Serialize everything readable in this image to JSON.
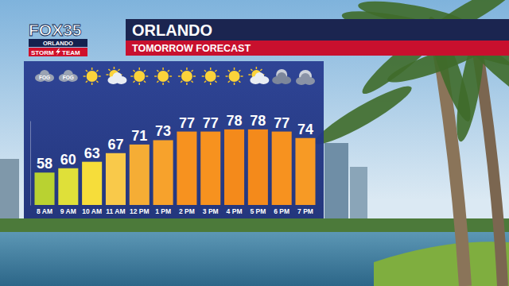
{
  "header": {
    "logo": "FOX35",
    "logo_city": "ORLANDO",
    "logo_tag_left": "STORM",
    "logo_tag_right": "TEAM"
  },
  "chart_data": {
    "type": "bar",
    "title": "ORLANDO",
    "subtitle": "TOMORROW FORECAST",
    "categories": [
      "8 AM",
      "9 AM",
      "10 AM",
      "11 AM",
      "12 PM",
      "1 PM",
      "2 PM",
      "3 PM",
      "4 PM",
      "5 PM",
      "6 PM",
      "7 PM"
    ],
    "values": [
      58,
      60,
      63,
      67,
      71,
      73,
      77,
      77,
      78,
      78,
      77,
      74
    ],
    "colors": [
      "#b9d231",
      "#dfe039",
      "#f6dd3a",
      "#f9c94a",
      "#f5ad35",
      "#f7a22c",
      "#f7921f",
      "#f7921f",
      "#f48a1b",
      "#f48a1b",
      "#f7921f",
      "#f79a25"
    ],
    "ylim": [
      43,
      82
    ],
    "yticks": [],
    "data_labels": true,
    "tick_labels": "x",
    "grid": false,
    "annotations": [
      {
        "category": "8 AM",
        "text": "FOG"
      },
      {
        "category": "9 AM",
        "text": "FOG"
      }
    ]
  }
}
